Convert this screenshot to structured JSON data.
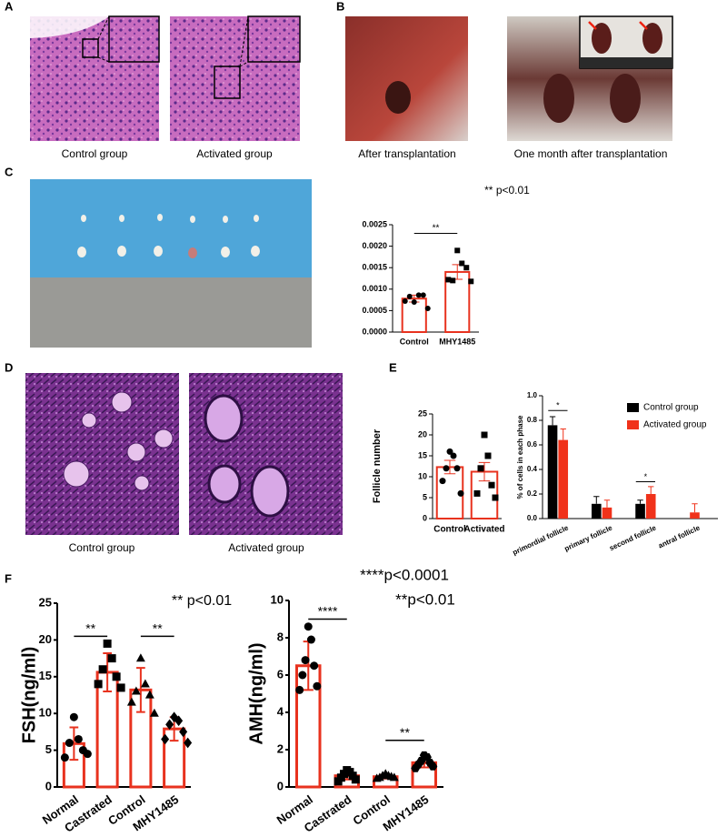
{
  "figure": {
    "panel_labels": [
      "A",
      "B",
      "C",
      "D",
      "E",
      "F"
    ],
    "captions": [
      "Control  group",
      "Activated  group",
      "After transplantation",
      "One month after transplantation",
      "Control  group",
      "Activated  group"
    ]
  },
  "chart_data": [
    {
      "type": "bar",
      "categories": [
        "Control",
        "MHY1485"
      ],
      "values": [
        0.00078,
        0.0014
      ],
      "errors": [
        8e-05,
        0.00017
      ],
      "points": [
        [
          0.0007,
          0.00086,
          0.00083,
          0.00086,
          0.00072,
          0.00055
        ],
        [
          0.0019,
          0.0016,
          0.0012,
          0.0015,
          0.00122,
          0.00118
        ]
      ],
      "markers": [
        "circle",
        "square"
      ],
      "color": "#e8321e",
      "filled": false,
      "ylim": [
        0,
        0.0025
      ],
      "yticks": [
        {
          "value": 0,
          "label": "0.0000"
        },
        {
          "value": 0.0005,
          "label": "0.0005"
        },
        {
          "value": 0.001,
          "label": "0.0010"
        },
        {
          "value": 0.0015,
          "label": "0.0015"
        },
        {
          "value": 0.002,
          "label": "0.0020"
        },
        {
          "value": 0.0025,
          "label": "0.0025"
        }
      ],
      "annotations": [
        "** p<0.01"
      ],
      "significance": [
        {
          "label": "**",
          "pair": [
            0,
            1
          ],
          "level": 0.0023
        }
      ]
    },
    {
      "type": "bar",
      "ylabel": "Follicle number",
      "categories": [
        "Control",
        "Activated"
      ],
      "values": [
        12.3,
        11.2
      ],
      "errors": [
        1.6,
        2.2
      ],
      "points": [
        [
          16,
          15,
          12,
          12,
          9,
          6
        ],
        [
          20,
          15,
          12,
          8,
          6,
          5
        ]
      ],
      "markers": [
        "circle",
        "square"
      ],
      "color": "#e8321e",
      "filled": false,
      "ylim": [
        0,
        25
      ],
      "yticks": [
        0,
        5,
        10,
        15,
        20,
        25
      ]
    },
    {
      "type": "grouped_bar",
      "ylabel": "% of cells in each phase",
      "categories": [
        "primordial follicle",
        "primary follicle",
        "second follicle",
        "antral follicle"
      ],
      "series": [
        {
          "name": "Control group",
          "color": "#000000",
          "values": [
            0.76,
            0.12,
            0.12,
            0
          ],
          "errors": [
            0.07,
            0.06,
            0.03,
            0
          ]
        },
        {
          "name": "Activated group",
          "color": "#f0321a",
          "values": [
            0.64,
            0.09,
            0.2,
            0.05
          ],
          "errors": [
            0.09,
            0.06,
            0.06,
            0.07
          ]
        }
      ],
      "ylim": [
        0,
        1.0
      ],
      "yticks": [
        {
          "value": 0,
          "label": "0.0"
        },
        0.2,
        0.4,
        0.6,
        0.8,
        {
          "value": 1.0,
          "label": "1.0"
        }
      ],
      "significance": [
        {
          "label": "*",
          "pair": [
            0,
            0
          ],
          "level": 0.88
        },
        {
          "label": "*",
          "pair": [
            2,
            2
          ],
          "level": 0.3
        }
      ]
    },
    {
      "type": "bar",
      "ylabel": "FSH(ng/ml)",
      "categories": [
        "Normal",
        "Castrated",
        "Control",
        "MHY1485"
      ],
      "values": [
        5.9,
        15.6,
        13.2,
        7.9
      ],
      "errors": [
        2.2,
        2.6,
        3.0,
        1.6
      ],
      "points": [
        [
          9.5,
          6.5,
          6.0,
          5.0,
          4.0,
          4.5
        ],
        [
          19.5,
          17.5,
          16.0,
          15.0,
          14.0,
          13.5
        ],
        [
          17.5,
          14.0,
          13.0,
          12.5,
          11.5,
          10.0
        ],
        [
          9.5,
          9.0,
          8.5,
          7.5,
          6.5,
          6.0
        ]
      ],
      "markers": [
        "circle",
        "square",
        "triangle",
        "diamond"
      ],
      "color": "#e8321e",
      "filled": false,
      "ylim": [
        0,
        25
      ],
      "yticks": [
        0,
        5,
        10,
        15,
        20,
        25
      ],
      "annotations": [
        "** p<0.01"
      ],
      "significance": [
        {
          "label": "**",
          "pair": [
            0,
            1
          ],
          "level": 20.5
        },
        {
          "label": "**",
          "pair": [
            2,
            3
          ],
          "level": 20.5
        }
      ]
    },
    {
      "type": "bar",
      "ylabel": "AMH(ng/ml)",
      "categories": [
        "Normal",
        "Castrated",
        "Control",
        "MHY1485"
      ],
      "values": [
        6.5,
        0.6,
        0.55,
        1.3
      ],
      "errors": [
        1.3,
        0.2,
        0.1,
        0.25
      ],
      "points": [
        [
          8.6,
          7.9,
          6.8,
          6.5,
          6.0,
          5.4,
          5.2
        ],
        [
          0.9,
          0.8,
          0.7,
          0.6,
          0.5,
          0.4,
          0.3
        ],
        [
          0.7,
          0.6,
          0.6,
          0.55,
          0.5,
          0.5,
          0.45
        ],
        [
          1.7,
          1.6,
          1.4,
          1.3,
          1.2,
          1.1,
          1.0
        ]
      ],
      "markers": [
        "circle",
        "square",
        "triangle",
        "hexagon"
      ],
      "color": "#e8321e",
      "filled": false,
      "ylim": [
        0,
        10
      ],
      "yticks": [
        0,
        2,
        4,
        6,
        8,
        10
      ],
      "annotations": [
        "****p<0.0001",
        "**p<0.01"
      ],
      "significance": [
        {
          "label": "****",
          "pair": [
            0,
            1
          ],
          "level": 9.0
        },
        {
          "label": "**",
          "pair": [
            2,
            3
          ],
          "level": 2.5
        }
      ]
    }
  ]
}
